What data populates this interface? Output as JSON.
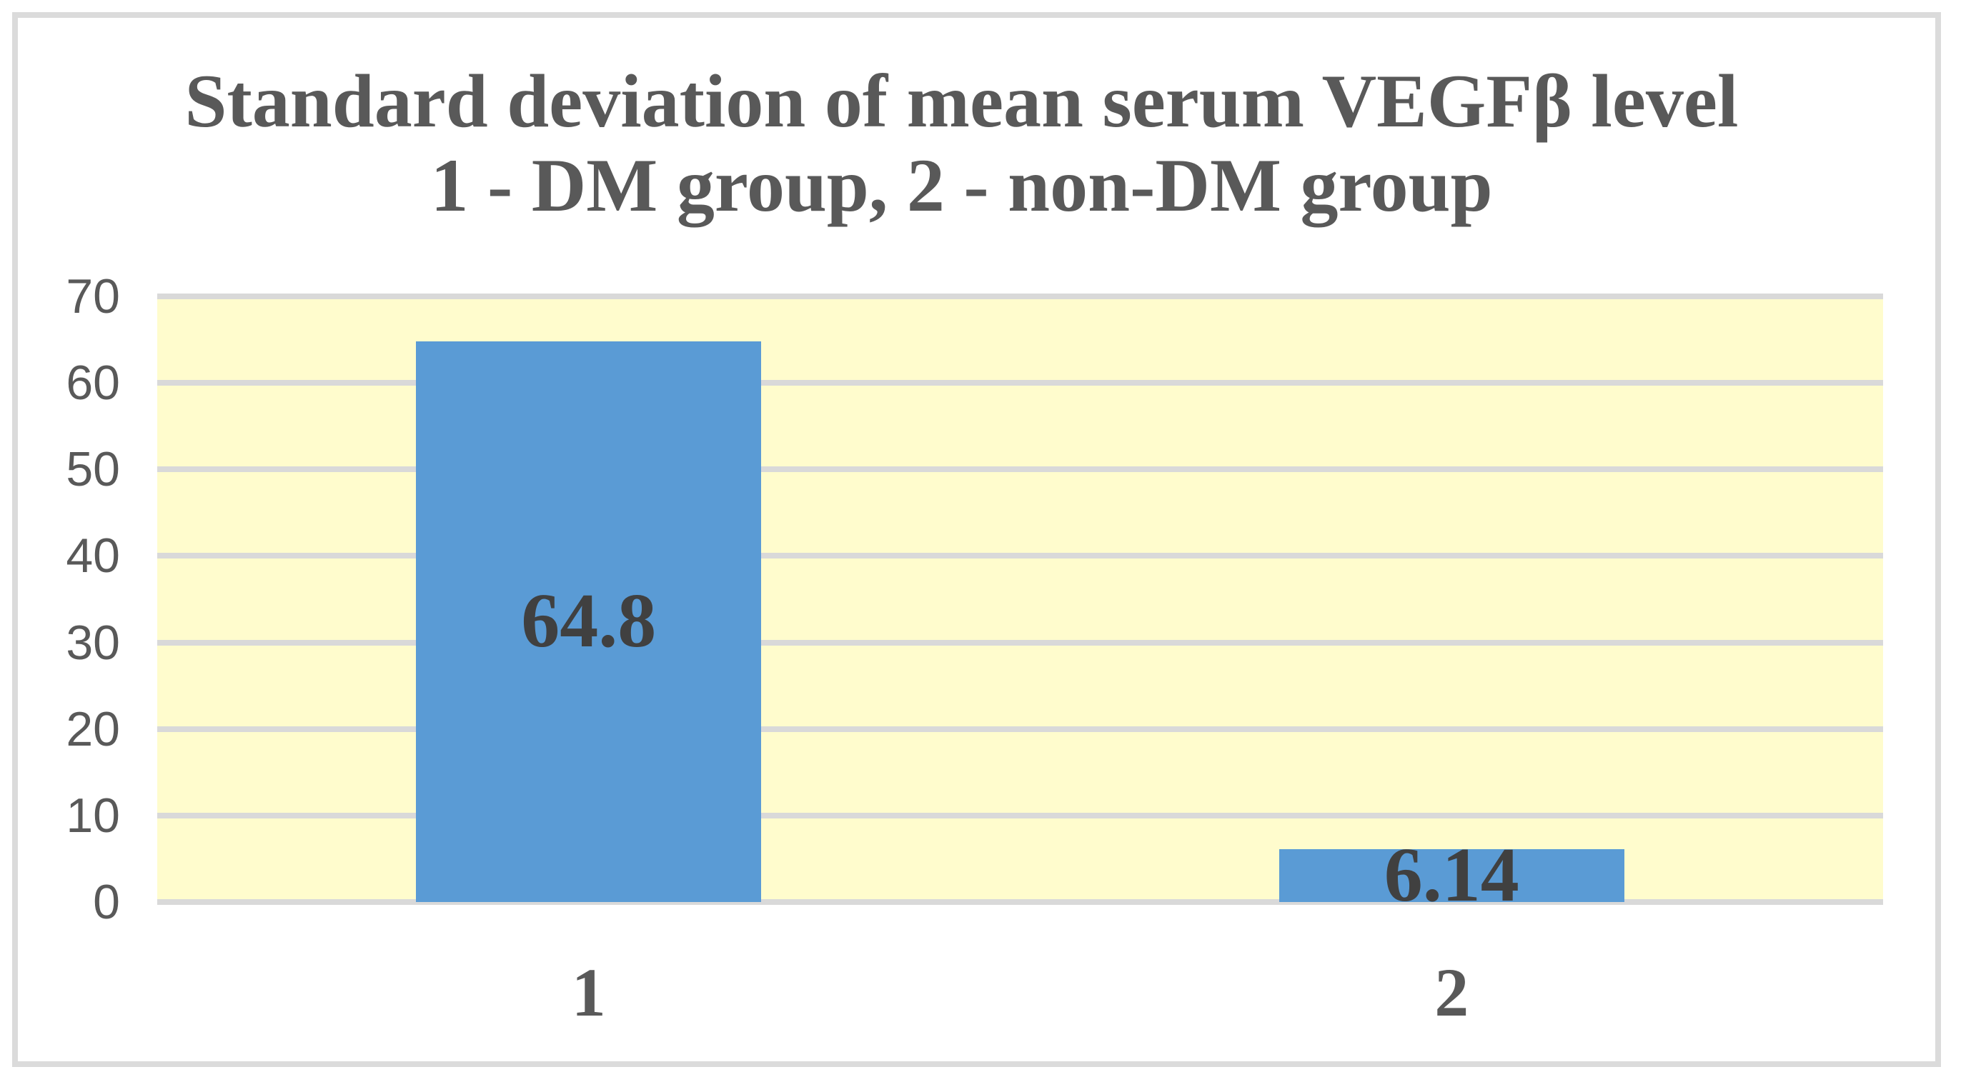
{
  "chart_data": {
    "type": "bar",
    "title_line1": "Standard deviation of mean serum VEGFβ level",
    "title_line2": "1 - DM group, 2 - non-DM group",
    "categories": [
      "1",
      "2"
    ],
    "values": [
      64.8,
      6.14
    ],
    "value_labels": [
      "64.8",
      "6.14"
    ],
    "series_name": "Standard deviation",
    "xlabel": "",
    "ylabel": "",
    "ylim": [
      0,
      70
    ],
    "yticks": [
      0,
      10,
      20,
      30,
      40,
      50,
      60,
      70
    ],
    "grid": "horizontal",
    "legend": "none",
    "bar_width_ratio": 0.4,
    "colors": {
      "bar_fill": "#5A9BD5",
      "plot_background": "#FFFCCD",
      "gridline": "#D9D9D9",
      "frame_border": "#DBDBDB",
      "title_text": "#595959",
      "axis_text": "#595959",
      "data_label_text": "#404040"
    }
  }
}
